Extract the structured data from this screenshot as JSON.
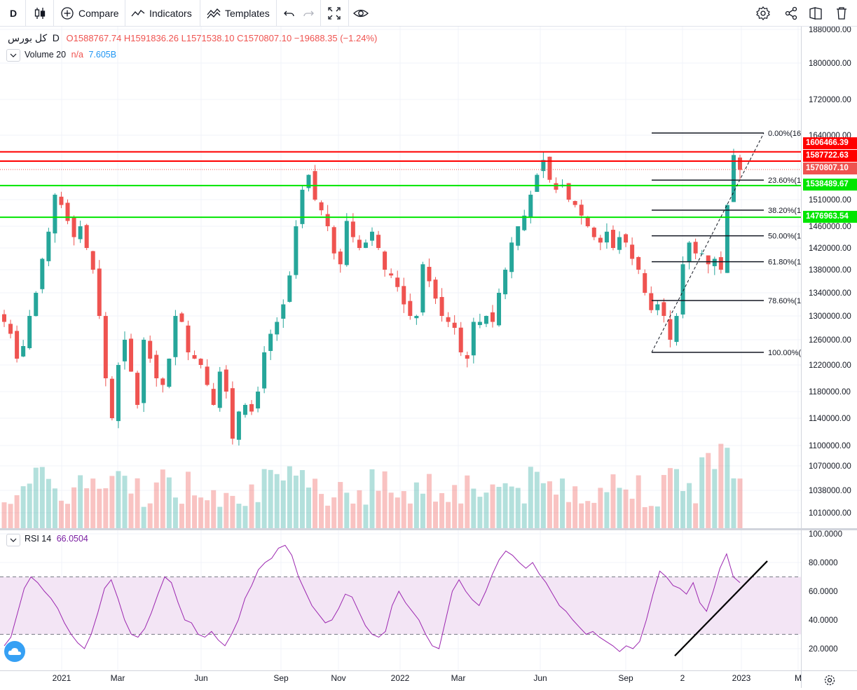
{
  "toolbar": {
    "interval": "D",
    "compare_label": "Compare",
    "indicators_label": "Indicators",
    "templates_label": "Templates"
  },
  "legend": {
    "symbol": "کل بورس",
    "interval": "D",
    "ohlc_text": "O1588767.74 H1591836.26 L1571538.10 C1570807.10 −19688.35 (−1.24%)",
    "volume_label": "Volume 20",
    "volume_na": "n/a",
    "volume_value": "7.605B",
    "rsi_label": "RSI 14",
    "rsi_value": "66.0504"
  },
  "colors": {
    "up": "#26a69a",
    "down": "#ef5350",
    "resistance": "#ff0000",
    "support": "#00e600",
    "rsi_line": "#9c27b0",
    "rsi_band": "#f3e5f5"
  },
  "price_labels": [
    {
      "text": "1606466.39",
      "color": "#ff0000"
    },
    {
      "text": "1587722.63",
      "color": "#ff0000"
    },
    {
      "text": "1570807.10",
      "color": "#ef5350"
    },
    {
      "text": "1538489.67",
      "color": "#00e600"
    },
    {
      "text": "1476963.54",
      "color": "#00e600"
    }
  ],
  "fib_levels": [
    "0.00%(16",
    "23.60%(1",
    "38.20%(1",
    "50.00%(1",
    "61.80%(1",
    "78.60%(1",
    "100.00%("
  ],
  "chart_data": [
    {
      "type": "candlestick",
      "title": "کل بورس",
      "y_ticks": [
        "1880000.00",
        "1800000.00",
        "1720000.00",
        "1640000.00",
        "1510000.00",
        "1460000.00",
        "1420000.00",
        "1380000.00",
        "1340000.00",
        "1300000.00",
        "1260000.00",
        "1220000.00",
        "1180000.00",
        "1140000.00",
        "1100000.00",
        "1070000.00",
        "1038000.00",
        "1010000.00"
      ],
      "x_ticks": [
        "2021",
        "Mar",
        "Jun",
        "Sep",
        "Nov",
        "2022",
        "Mar",
        "Jun",
        "Sep",
        "2",
        "2023",
        "M"
      ],
      "ohlc_last": {
        "open": 1588767.74,
        "high": 1591836.26,
        "low": 1571538.1,
        "close": 1570807.1,
        "change": -19688.35,
        "change_pct": -1.24
      },
      "horizontal_lines": [
        {
          "value": 1606466.39,
          "color": "red"
        },
        {
          "value": 1587722.63,
          "color": "red"
        },
        {
          "value": 1538489.67,
          "color": "green"
        },
        {
          "value": 1476963.54,
          "color": "green"
        }
      ],
      "fibonacci": {
        "levels_pct": [
          0,
          23.6,
          38.2,
          50,
          61.8,
          78.6,
          100
        ]
      },
      "close_series": [
        1290000,
        1270000,
        1230000,
        1250000,
        1300000,
        1340000,
        1400000,
        1450000,
        1520000,
        1500000,
        1470000,
        1440000,
        1460000,
        1420000,
        1380000,
        1300000,
        1200000,
        1140000,
        1220000,
        1260000,
        1210000,
        1160000,
        1260000,
        1230000,
        1200000,
        1190000,
        1230000,
        1300000,
        1290000,
        1240000,
        1230000,
        1220000,
        1190000,
        1160000,
        1210000,
        1180000,
        1110000,
        1150000,
        1160000,
        1150000,
        1180000,
        1240000,
        1270000,
        1290000,
        1320000,
        1370000,
        1460000,
        1530000,
        1560000,
        1510000,
        1490000,
        1460000,
        1410000,
        1390000,
        1470000,
        1440000,
        1420000,
        1430000,
        1450000,
        1420000,
        1380000,
        1370000,
        1350000,
        1320000,
        1300000,
        1300000,
        1390000,
        1360000,
        1330000,
        1300000,
        1290000,
        1280000,
        1240000,
        1230000,
        1290000,
        1290000,
        1300000,
        1290000,
        1340000,
        1380000,
        1430000,
        1460000,
        1480000,
        1520000,
        1560000,
        1590000,
        1550000,
        1530000,
        1540000,
        1510000,
        1500000,
        1480000,
        1460000,
        1440000,
        1430000,
        1450000,
        1420000,
        1440000,
        1430000,
        1400000,
        1380000,
        1340000,
        1310000,
        1320000,
        1300000,
        1260000,
        1300000,
        1390000,
        1430000,
        1410000,
        1410000,
        1390000,
        1400000,
        1380000,
        1500000,
        1600000,
        1570000
      ]
    },
    {
      "type": "bar",
      "title": "Volume 20",
      "last_value": "7.605B"
    },
    {
      "type": "line",
      "title": "RSI 14",
      "last_value": 66.0504,
      "y_ticks": [
        "100.0000",
        "80.0000",
        "60.0000",
        "40.0000",
        "20.0000"
      ],
      "bands": [
        70,
        30
      ],
      "values": [
        22,
        28,
        45,
        62,
        70,
        66,
        60,
        55,
        48,
        38,
        30,
        24,
        20,
        30,
        45,
        62,
        68,
        55,
        40,
        30,
        28,
        34,
        45,
        58,
        70,
        66,
        52,
        40,
        38,
        30,
        28,
        32,
        26,
        22,
        30,
        40,
        55,
        64,
        75,
        80,
        83,
        90,
        92,
        85,
        70,
        60,
        50,
        44,
        38,
        40,
        48,
        58,
        56,
        46,
        36,
        30,
        28,
        32,
        50,
        60,
        52,
        46,
        40,
        30,
        22,
        20,
        40,
        60,
        68,
        60,
        54,
        50,
        60,
        72,
        82,
        88,
        85,
        80,
        76,
        80,
        72,
        66,
        58,
        50,
        46,
        40,
        35,
        30,
        32,
        28,
        25,
        22,
        18,
        22,
        20,
        25,
        40,
        58,
        74,
        70,
        64,
        62,
        58,
        66,
        52,
        46,
        60,
        76,
        86,
        70,
        66
      ],
      "trendline": true
    }
  ]
}
